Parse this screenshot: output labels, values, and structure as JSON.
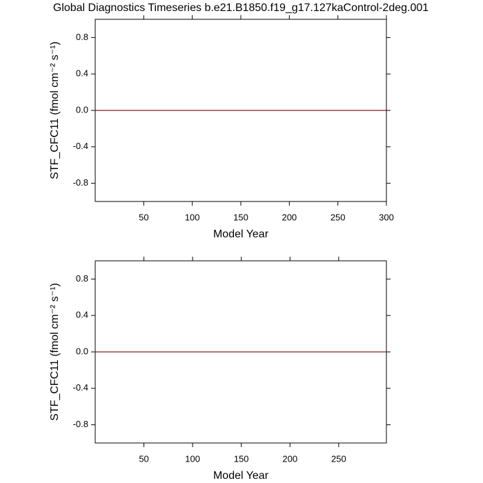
{
  "chart_data": [
    {
      "type": "line",
      "title": "Global Diagnostics Timeseries b.e21.B1850.f19_g17.127kaControl-2deg.001",
      "x_label": "Model Year",
      "y_label": "STF_CFC11 (fmol cm⁻² s⁻¹)",
      "x": [
        0,
        300
      ],
      "series": [
        {
          "color": "#8b1a1a",
          "values": [
            0,
            0
          ]
        }
      ],
      "xlim": [
        0,
        300
      ],
      "xticks": [
        50,
        100,
        150,
        200,
        250,
        300
      ],
      "ylim": [
        -1,
        1
      ],
      "yticks": [
        -0.8,
        -0.4,
        {
          "value": 0,
          "label": "0.0"
        },
        0.4,
        0.8
      ]
    },
    {
      "type": "line",
      "x_label": "Model Year",
      "y_label": "STF_CFC11 (fmol cm⁻² s⁻¹)",
      "x": [
        0,
        299
      ],
      "series": [
        {
          "color": "#8b1a1a",
          "values": [
            0,
            0
          ]
        }
      ],
      "xlim": [
        0,
        299
      ],
      "xticks": [
        50,
        100,
        150,
        200,
        250
      ],
      "ylim": [
        -1,
        1
      ],
      "yticks": [
        -0.8,
        -0.4,
        {
          "value": 0,
          "label": "0.0"
        },
        0.4,
        0.8
      ]
    }
  ]
}
